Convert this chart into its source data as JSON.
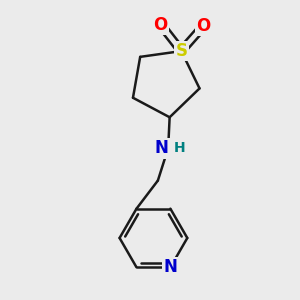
{
  "bg_color": "#ebebeb",
  "bond_color": "#1a1a1a",
  "S_color": "#cccc00",
  "O_color": "#ff0000",
  "N_color": "#0000cc",
  "NH_color": "#0000cc",
  "H_color": "#008080",
  "line_width": 1.8,
  "font_size_atoms": 12,
  "font_size_H": 10,
  "xlim": [
    0,
    10
  ],
  "ylim": [
    0,
    10
  ]
}
